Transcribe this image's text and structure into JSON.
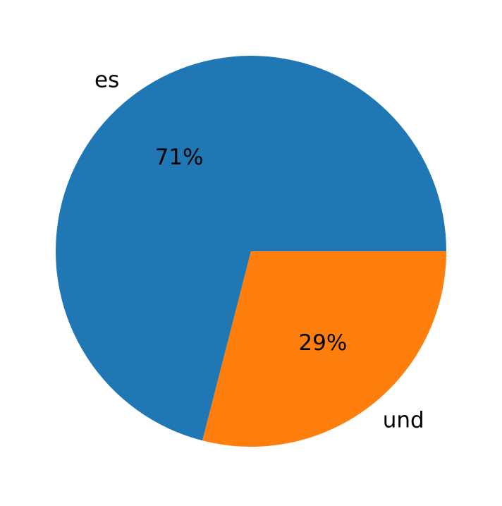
{
  "chart_data": {
    "type": "pie",
    "categories": [
      "es",
      "und"
    ],
    "values": [
      71,
      29
    ],
    "value_labels": [
      "71%",
      "29%"
    ],
    "colors": [
      "#1f77b4",
      "#ff7f0e"
    ]
  }
}
